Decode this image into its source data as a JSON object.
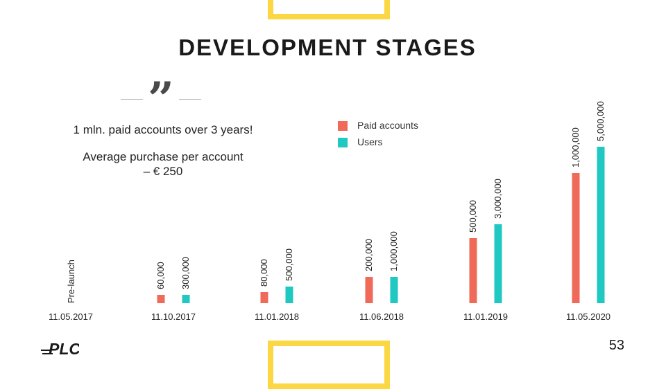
{
  "slide": {
    "title": "DEVELOPMENT STAGES",
    "headline": "1 mln. paid accounts over 3 years!",
    "subline_1": "Average purchase per account",
    "subline_2": "– € 250",
    "page_number": "53",
    "logo_text": "PLC"
  },
  "colors": {
    "paid": "#f06a5a",
    "users": "#1fc8c0",
    "accent_frame": "#fbd843"
  },
  "chart_data": {
    "type": "bar",
    "categories": [
      "11.05.2017",
      "11.10.2017",
      "11.01.2018",
      "11.06.2018",
      "11.01.2019",
      "11.05.2020"
    ],
    "series": [
      {
        "name": "Paid accounts",
        "values": [
          null,
          60000,
          80000,
          200000,
          500000,
          1000000
        ],
        "labels": [
          "",
          "60,000",
          "80,000",
          "200,000",
          "500,000",
          "1,000,000"
        ]
      },
      {
        "name": "Users",
        "values": [
          null,
          300000,
          500000,
          1000000,
          3000000,
          5000000
        ],
        "labels": [
          "",
          "300,000",
          "500,000",
          "1,000,000",
          "3,000,000",
          "5,000,000"
        ]
      }
    ],
    "annotations": [
      {
        "category": "11.05.2017",
        "text": "Pre-launch"
      }
    ],
    "legend_placement": "top-center",
    "grid": false,
    "scale": "non-linear"
  }
}
